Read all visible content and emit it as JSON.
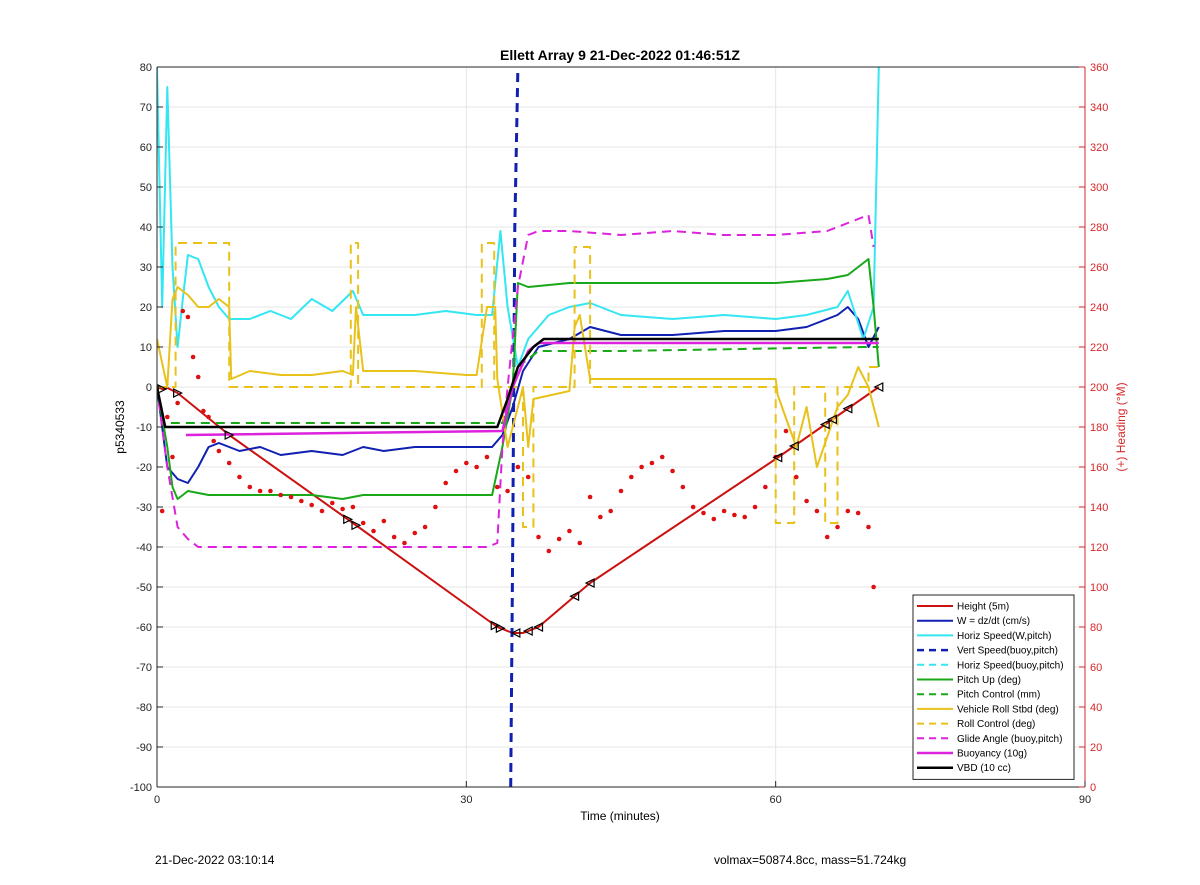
{
  "footer": {
    "left": "21-Dec-2022 03:10:14",
    "right": "volmax=50874.8cc, mass=51.724kg"
  },
  "chart_data": {
    "type": "line",
    "title": "Ellett Array 9 21-Dec-2022 01:46:51Z",
    "xlabel": "Time (minutes)",
    "ylabel": "p5340533",
    "y2label": "(+) Heading (°M)",
    "xlim": [
      0,
      90
    ],
    "ylim": [
      -100,
      80
    ],
    "y2lim": [
      0,
      360
    ],
    "xticks": [
      0,
      30,
      60,
      90
    ],
    "yticks": [
      -100,
      -90,
      -80,
      -70,
      -60,
      -50,
      -40,
      -30,
      -20,
      -10,
      0,
      10,
      20,
      30,
      40,
      50,
      60,
      70,
      80
    ],
    "y2ticks": [
      0,
      20,
      40,
      60,
      80,
      100,
      120,
      140,
      160,
      180,
      200,
      220,
      240,
      260,
      280,
      300,
      320,
      340,
      360
    ],
    "grid": true,
    "legend_position": "bottom-right",
    "colors": {
      "axis_right": "#d62728",
      "grid": "#e6e6e6"
    },
    "series": [
      {
        "name": "Height (5m)",
        "color": "#cc1111",
        "style": "solid",
        "width": 2,
        "x": [
          0,
          0.5,
          1,
          2,
          7,
          19,
          33,
          34.5,
          35.5,
          37,
          42,
          60,
          65,
          70
        ],
        "y": [
          0,
          -0.5,
          -0.2,
          -1.5,
          -12,
          -34,
          -60,
          -61.5,
          -61.5,
          -60,
          -49,
          -18,
          -9,
          0
        ]
      },
      {
        "name": "W = dz/dt (cm/s)",
        "color": "#1020b0",
        "style": "solid",
        "width": 2,
        "x": [
          0,
          1,
          2,
          3,
          4,
          5,
          6,
          8,
          10,
          12,
          15,
          18,
          20,
          22,
          25,
          28,
          31,
          32.5,
          33.5,
          34.5,
          35.5,
          37,
          40,
          42,
          45,
          50,
          55,
          60,
          63,
          66,
          67,
          68,
          69,
          70
        ],
        "y": [
          0,
          -20,
          -23,
          -24,
          -20,
          -15,
          -14,
          -16,
          -15,
          -17,
          -16,
          -17,
          -15,
          -16,
          -15,
          -15,
          -15,
          -15,
          -12,
          -5,
          4,
          10,
          12,
          15,
          13,
          13,
          14,
          14,
          15,
          18,
          20,
          17,
          10,
          15
        ]
      },
      {
        "name": "Horiz Speed(W,pitch)",
        "color": "#33e6f2",
        "style": "solid",
        "width": 2,
        "x": [
          0,
          0.5,
          1,
          1.5,
          2,
          2.5,
          3,
          4,
          5,
          6,
          7,
          9,
          11,
          13,
          15,
          17,
          19,
          20,
          22,
          25,
          28,
          31,
          32.5,
          33.3,
          34,
          35,
          36,
          38,
          40,
          42,
          45,
          50,
          55,
          60,
          63,
          66,
          67,
          68.5,
          69.5,
          70
        ],
        "y": [
          80,
          20,
          75,
          30,
          10,
          22,
          33,
          32,
          25,
          20,
          17,
          17,
          19,
          17,
          22,
          19,
          24,
          18,
          18,
          18,
          19,
          18,
          18,
          39,
          20,
          5,
          12,
          18,
          20,
          21,
          18,
          17,
          18,
          17,
          18,
          20,
          24,
          12,
          20,
          80
        ]
      },
      {
        "name": "Vert Speed(buoy,pitch)",
        "color": "#1020b0",
        "style": "dashed",
        "width": 3,
        "x": [
          34.3,
          34.5,
          34.7,
          35.0
        ],
        "y": [
          -100,
          -40,
          40,
          80
        ]
      },
      {
        "name": "Horiz Speed(buoy,pitch)",
        "color": "#33e6f2",
        "style": "dashed",
        "width": 2,
        "x": [],
        "y": []
      },
      {
        "name": "Pitch Up (deg)",
        "color": "#18a818",
        "style": "solid",
        "width": 2,
        "x": [
          0,
          1,
          1.5,
          2,
          2.5,
          3,
          5,
          7,
          10,
          15,
          18,
          20,
          25,
          30,
          32.5,
          33.5,
          34.5,
          35,
          36,
          40,
          45,
          50,
          55,
          60,
          65,
          67,
          68,
          69,
          69.5,
          70
        ],
        "y": [
          0,
          -15,
          -25,
          -28,
          -27,
          -26,
          -27,
          -27,
          -27,
          -27,
          -28,
          -27,
          -27,
          -27,
          -27,
          -15,
          0,
          26,
          25,
          26,
          26,
          26,
          26,
          26,
          27,
          28,
          30,
          32,
          20,
          5
        ]
      },
      {
        "name": "Pitch Control (mm)",
        "color": "#18a818",
        "style": "dashed",
        "width": 2,
        "x": [
          0,
          0.5,
          33.5,
          35,
          37,
          45,
          68.5,
          69,
          70
        ],
        "y": [
          0,
          -9,
          -9,
          5,
          9,
          9,
          10,
          10,
          10
        ]
      },
      {
        "name": "Vehicle Roll Stbd (deg)",
        "color": "#e8c21a",
        "style": "solid",
        "width": 2,
        "x": [
          0,
          1,
          1.5,
          2,
          3,
          4,
          5,
          6,
          7,
          7.2,
          9,
          12,
          15,
          18,
          19,
          19.3,
          20,
          25,
          30,
          31,
          32,
          32.8,
          33,
          34,
          35,
          35.5,
          36,
          36.5,
          40,
          40.5,
          41,
          42,
          50,
          55,
          60,
          60.2,
          62,
          63,
          64,
          66,
          67,
          68,
          69,
          70
        ],
        "y": [
          12,
          0,
          22,
          25,
          23,
          20,
          20,
          22,
          20,
          2,
          4,
          3,
          3,
          4,
          3,
          20,
          4,
          4,
          3,
          3,
          20,
          20,
          2,
          -15,
          -5,
          0,
          -15,
          -3,
          -1,
          15,
          18,
          2,
          2,
          2,
          2,
          -2,
          -15,
          -5,
          -20,
          -5,
          -2,
          5,
          0,
          -10
        ]
      },
      {
        "name": "Roll Control (deg)",
        "color": "#e8c21a",
        "style": "dashed",
        "width": 2,
        "x": [
          0,
          1,
          1.8,
          1.8,
          7,
          7,
          18.8,
          18.8,
          19.5,
          19.5,
          31.5,
          31.5,
          32.7,
          32.7,
          35.5,
          35.5,
          36.5,
          36.5,
          40.5,
          40.5,
          42,
          42,
          60,
          60,
          61.8,
          61.8,
          64.8,
          64.8,
          66,
          66,
          69,
          69,
          70
        ],
        "y": [
          0,
          0,
          0,
          36,
          36,
          0,
          0,
          36,
          36,
          0,
          0,
          36,
          36,
          0,
          0,
          -35,
          -35,
          0,
          0,
          35,
          35,
          0,
          0,
          -34,
          -34,
          0,
          0,
          -34,
          -34,
          0,
          0,
          5,
          5
        ]
      },
      {
        "name": "Glide Angle (buoy,pitch)",
        "color": "#dd22dd",
        "style": "dashed",
        "width": 2,
        "x": [
          0,
          1,
          2,
          3,
          4,
          5,
          6,
          8,
          12,
          18,
          24,
          30,
          32,
          33,
          33.5,
          34,
          35,
          36,
          37,
          40,
          45,
          50,
          55,
          60,
          65,
          66,
          67,
          68,
          69,
          69.5
        ],
        "y": [
          0,
          -20,
          -35,
          -38,
          -40,
          -40,
          -40,
          -40,
          -40,
          -40,
          -40,
          -40,
          -40,
          -39,
          -15,
          0,
          25,
          38,
          39,
          39,
          38,
          39,
          38,
          38,
          39,
          40,
          41,
          42,
          43,
          35
        ]
      },
      {
        "name": "Buoyancy (10g)",
        "color": "#dd22dd",
        "style": "solid",
        "width": 2.5,
        "x": [
          2.8,
          33.5,
          34.5,
          36,
          37,
          70
        ],
        "y": [
          -12,
          -11,
          0,
          9,
          11,
          11
        ]
      },
      {
        "name": "VBD (10 cc)",
        "color": "#000000",
        "style": "solid",
        "width": 2.5,
        "x": [
          0,
          0.4,
          0.8,
          33,
          34,
          35,
          36.5,
          37.5,
          70
        ],
        "y": [
          0,
          -5,
          -10,
          -10,
          -3,
          5,
          10,
          12,
          12
        ]
      },
      {
        "name": "Heading",
        "axis": "right",
        "color": "#dd1111",
        "style": "dots",
        "x": [
          0.5,
          1,
          1.5,
          2,
          2.5,
          3,
          3.5,
          4,
          4.5,
          5,
          5.5,
          6,
          7,
          8,
          9,
          10,
          11,
          12,
          13,
          14,
          15,
          16,
          17,
          18,
          19,
          20,
          21,
          22,
          23,
          24,
          25,
          26,
          27,
          28,
          29,
          30,
          31,
          32,
          33,
          34,
          35,
          36,
          37,
          38,
          39,
          40,
          41,
          42,
          43,
          44,
          45,
          46,
          47,
          48,
          49,
          50,
          51,
          52,
          53,
          54,
          55,
          56,
          57,
          58,
          59,
          60,
          61,
          62,
          63,
          64,
          65,
          66,
          67,
          68,
          69,
          69.5
        ],
        "y": [
          138,
          185,
          165,
          192,
          238,
          235,
          215,
          205,
          188,
          185,
          173,
          168,
          162,
          155,
          150,
          148,
          148,
          146,
          145,
          143,
          141,
          138,
          142,
          139,
          140,
          132,
          128,
          133,
          125,
          122,
          127,
          130,
          140,
          152,
          158,
          162,
          160,
          165,
          150,
          148,
          160,
          155,
          125,
          118,
          124,
          128,
          122,
          145,
          135,
          138,
          148,
          155,
          160,
          162,
          165,
          158,
          150,
          140,
          137,
          134,
          138,
          136,
          135,
          140,
          150,
          165,
          178,
          155,
          143,
          138,
          125,
          130,
          138,
          137,
          130,
          100
        ]
      }
    ]
  }
}
